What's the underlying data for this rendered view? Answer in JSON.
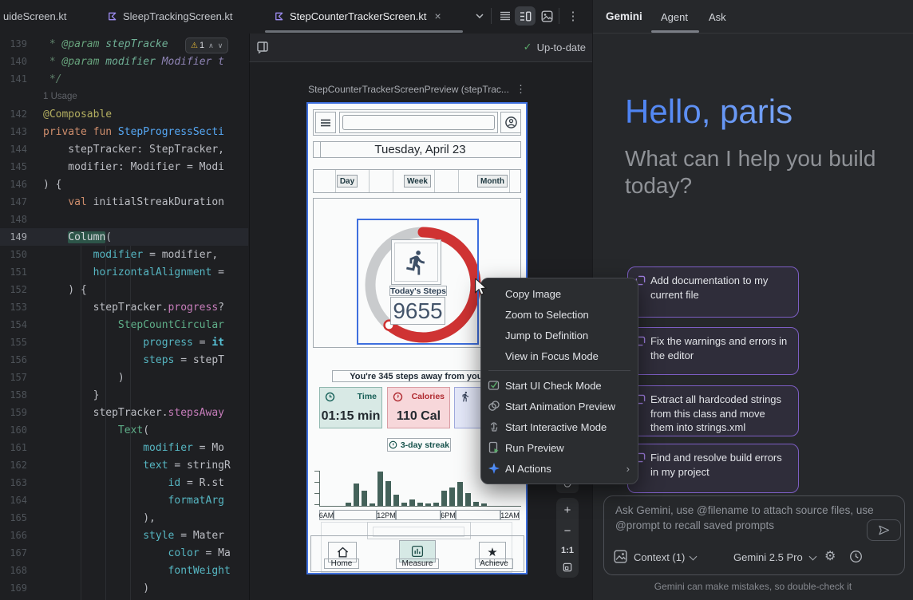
{
  "tabs": {
    "items": [
      {
        "label": "uideScreen.kt"
      },
      {
        "label": "SleepTrackingScreen.kt"
      },
      {
        "label": "StepCounterTrackerScreen.kt"
      }
    ]
  },
  "editor": {
    "inspection_warning_count": "1",
    "lines": [
      {
        "n": "139",
        "s": [
          [
            "doc",
            " * "
          ],
          [
            "doctag",
            "@param "
          ],
          [
            "docparam",
            "stepTracke"
          ]
        ]
      },
      {
        "n": "140",
        "s": [
          [
            "doc",
            " * "
          ],
          [
            "doctag",
            "@param "
          ],
          [
            "docparam",
            "modifier "
          ],
          [
            "docbody",
            "Modifier t"
          ]
        ]
      },
      {
        "n": "141",
        "s": [
          [
            "doc",
            " */"
          ]
        ]
      },
      {
        "inlay": "1 Usage"
      },
      {
        "n": "142",
        "s": [
          [
            "ann",
            "@Composable"
          ]
        ]
      },
      {
        "n": "143",
        "s": [
          [
            "kw",
            "private fun "
          ],
          [
            "fn",
            "StepProgressSecti"
          ]
        ]
      },
      {
        "n": "144",
        "s": [
          [
            "plain",
            "    stepTracker: StepTracker,"
          ]
        ]
      },
      {
        "n": "145",
        "s": [
          [
            "plain",
            "    modifier: Modifier = Modi"
          ]
        ]
      },
      {
        "n": "146",
        "s": [
          [
            "plain",
            ") {"
          ]
        ]
      },
      {
        "n": "147",
        "s": [
          [
            "plain",
            "    "
          ],
          [
            "kw",
            "val "
          ],
          [
            "plain",
            "initialStreakDuration"
          ]
        ]
      },
      {
        "n": "148",
        "s": []
      },
      {
        "n": "149",
        "cur": true,
        "s": [
          [
            "plain",
            "    "
          ],
          [
            "hl",
            "Column"
          ],
          [
            "plain",
            "("
          ]
        ]
      },
      {
        "n": "150",
        "s": [
          [
            "plain",
            "        "
          ],
          [
            "named",
            "modifier"
          ],
          [
            "plain",
            " = modifier,"
          ]
        ]
      },
      {
        "n": "151",
        "s": [
          [
            "plain",
            "        "
          ],
          [
            "named",
            "horizontalAlignment"
          ],
          [
            "plain",
            " ="
          ]
        ]
      },
      {
        "n": "152",
        "s": [
          [
            "plain",
            "    ) {"
          ]
        ]
      },
      {
        "n": "153",
        "s": [
          [
            "plain",
            "        stepTracker."
          ],
          [
            "prop",
            "progress"
          ],
          [
            "plain",
            "?"
          ]
        ]
      },
      {
        "n": "154",
        "s": [
          [
            "plain",
            "            "
          ],
          [
            "compose",
            "StepCountCircular"
          ]
        ]
      },
      {
        "n": "155",
        "s": [
          [
            "plain",
            "                "
          ],
          [
            "named",
            "progress"
          ],
          [
            "plain",
            " = "
          ],
          [
            "kwit",
            "it"
          ]
        ]
      },
      {
        "n": "156",
        "s": [
          [
            "plain",
            "                "
          ],
          [
            "named",
            "steps"
          ],
          [
            "plain",
            " = stepT"
          ]
        ]
      },
      {
        "n": "157",
        "s": [
          [
            "plain",
            "            )"
          ]
        ]
      },
      {
        "n": "158",
        "s": [
          [
            "plain",
            "        }"
          ]
        ]
      },
      {
        "n": "159",
        "s": [
          [
            "plain",
            "        stepTracker."
          ],
          [
            "prop",
            "stepsAway"
          ]
        ]
      },
      {
        "n": "160",
        "s": [
          [
            "plain",
            "            "
          ],
          [
            "compose",
            "Text"
          ],
          [
            "plain",
            "("
          ]
        ]
      },
      {
        "n": "161",
        "s": [
          [
            "plain",
            "                "
          ],
          [
            "named",
            "modifier"
          ],
          [
            "plain",
            " = Mo"
          ]
        ]
      },
      {
        "n": "162",
        "s": [
          [
            "plain",
            "                "
          ],
          [
            "named",
            "text"
          ],
          [
            "plain",
            " = stringR"
          ]
        ]
      },
      {
        "n": "163",
        "s": [
          [
            "plain",
            "                    "
          ],
          [
            "named",
            "id"
          ],
          [
            "plain",
            " = R.st"
          ]
        ]
      },
      {
        "n": "164",
        "s": [
          [
            "plain",
            "                    "
          ],
          [
            "named",
            "formatArg"
          ]
        ]
      },
      {
        "n": "165",
        "s": [
          [
            "plain",
            "                ),"
          ]
        ]
      },
      {
        "n": "166",
        "s": [
          [
            "plain",
            "                "
          ],
          [
            "named",
            "style"
          ],
          [
            "plain",
            " = Mater"
          ]
        ]
      },
      {
        "n": "167",
        "s": [
          [
            "plain",
            "                    "
          ],
          [
            "named",
            "color"
          ],
          [
            "plain",
            " = Ma"
          ]
        ]
      },
      {
        "n": "168",
        "s": [
          [
            "plain",
            "                    "
          ],
          [
            "named",
            "fontWeight"
          ]
        ]
      },
      {
        "n": "169",
        "s": [
          [
            "plain",
            "                )"
          ]
        ]
      },
      {
        "n": "170",
        "s": [
          [
            "plain",
            "            )"
          ]
        ]
      }
    ]
  },
  "preview": {
    "status": "Up-to-date",
    "title": "StepCounterTrackerScreenPreview (stepTrac...",
    "zoom_actual_label": "1:1",
    "device": {
      "date": "Tuesday, April 23",
      "period_tabs": [
        "Day",
        "Week",
        "Month"
      ],
      "steps_card": {
        "label": "Today's Steps",
        "value": "9655"
      },
      "steps_away_text": "You're 345 steps away from your",
      "stat_cards": [
        {
          "label": "Time",
          "value": "01:15 min"
        },
        {
          "label": "Calories",
          "value": "110 Cal"
        }
      ],
      "streak_badge": "3-day streak",
      "nav_items": [
        "Home",
        "Measure",
        "Achieve"
      ]
    },
    "chart_data": {
      "type": "bar",
      "x_ticks": [
        "6AM",
        "12PM",
        "6PM",
        "12AM"
      ],
      "values": [
        9,
        58,
        40,
        7,
        90,
        65,
        29,
        8,
        17,
        9,
        6,
        9,
        40,
        48,
        62,
        33,
        10,
        6
      ],
      "ylim": [
        0,
        100
      ],
      "title": "",
      "xlabel": "",
      "ylabel": ""
    }
  },
  "context_menu": {
    "items": [
      {
        "label": "Copy Image"
      },
      {
        "label": "Zoom to Selection"
      },
      {
        "label": "Jump to Definition"
      },
      {
        "label": "View in Focus Mode"
      },
      {
        "separator": true
      },
      {
        "label": "Start UI Check Mode",
        "icon": "ui-check"
      },
      {
        "label": "Start Animation Preview",
        "icon": "animation"
      },
      {
        "label": "Start Interactive Mode",
        "icon": "interactive"
      },
      {
        "label": "Run Preview",
        "icon": "run"
      },
      {
        "label": "AI Actions",
        "icon": "ai",
        "submenu": true
      }
    ]
  },
  "gemini": {
    "title": "Gemini",
    "tabs": [
      "Agent",
      "Ask"
    ],
    "greeting": "Hello, paris",
    "subtitle": "What can I help you build today?",
    "suggestions": [
      "Add documentation to my current file",
      "Fix the warnings and errors in the editor",
      "Extract all hardcoded strings from this class and move them into strings.xml",
      "Find and resolve build errors in my project"
    ],
    "input": {
      "placeholder": "Ask Gemini, use @filename to attach source files, use @prompt to recall saved prompts",
      "context_label": "Context (1)",
      "model_label": "Gemini 2.5 Pro"
    },
    "disclaimer": "Gemini can make mistakes, so double-check it"
  },
  "colors": {
    "device_selection_blue": "#3E6FDE",
    "progress_red": "#CF3333",
    "ai_star_blue": "#4B8DF8",
    "warning_yellow": "#E8BA36",
    "suggestion_purple": "#7D5EC4",
    "greeting_blue": "#4C82F2"
  }
}
